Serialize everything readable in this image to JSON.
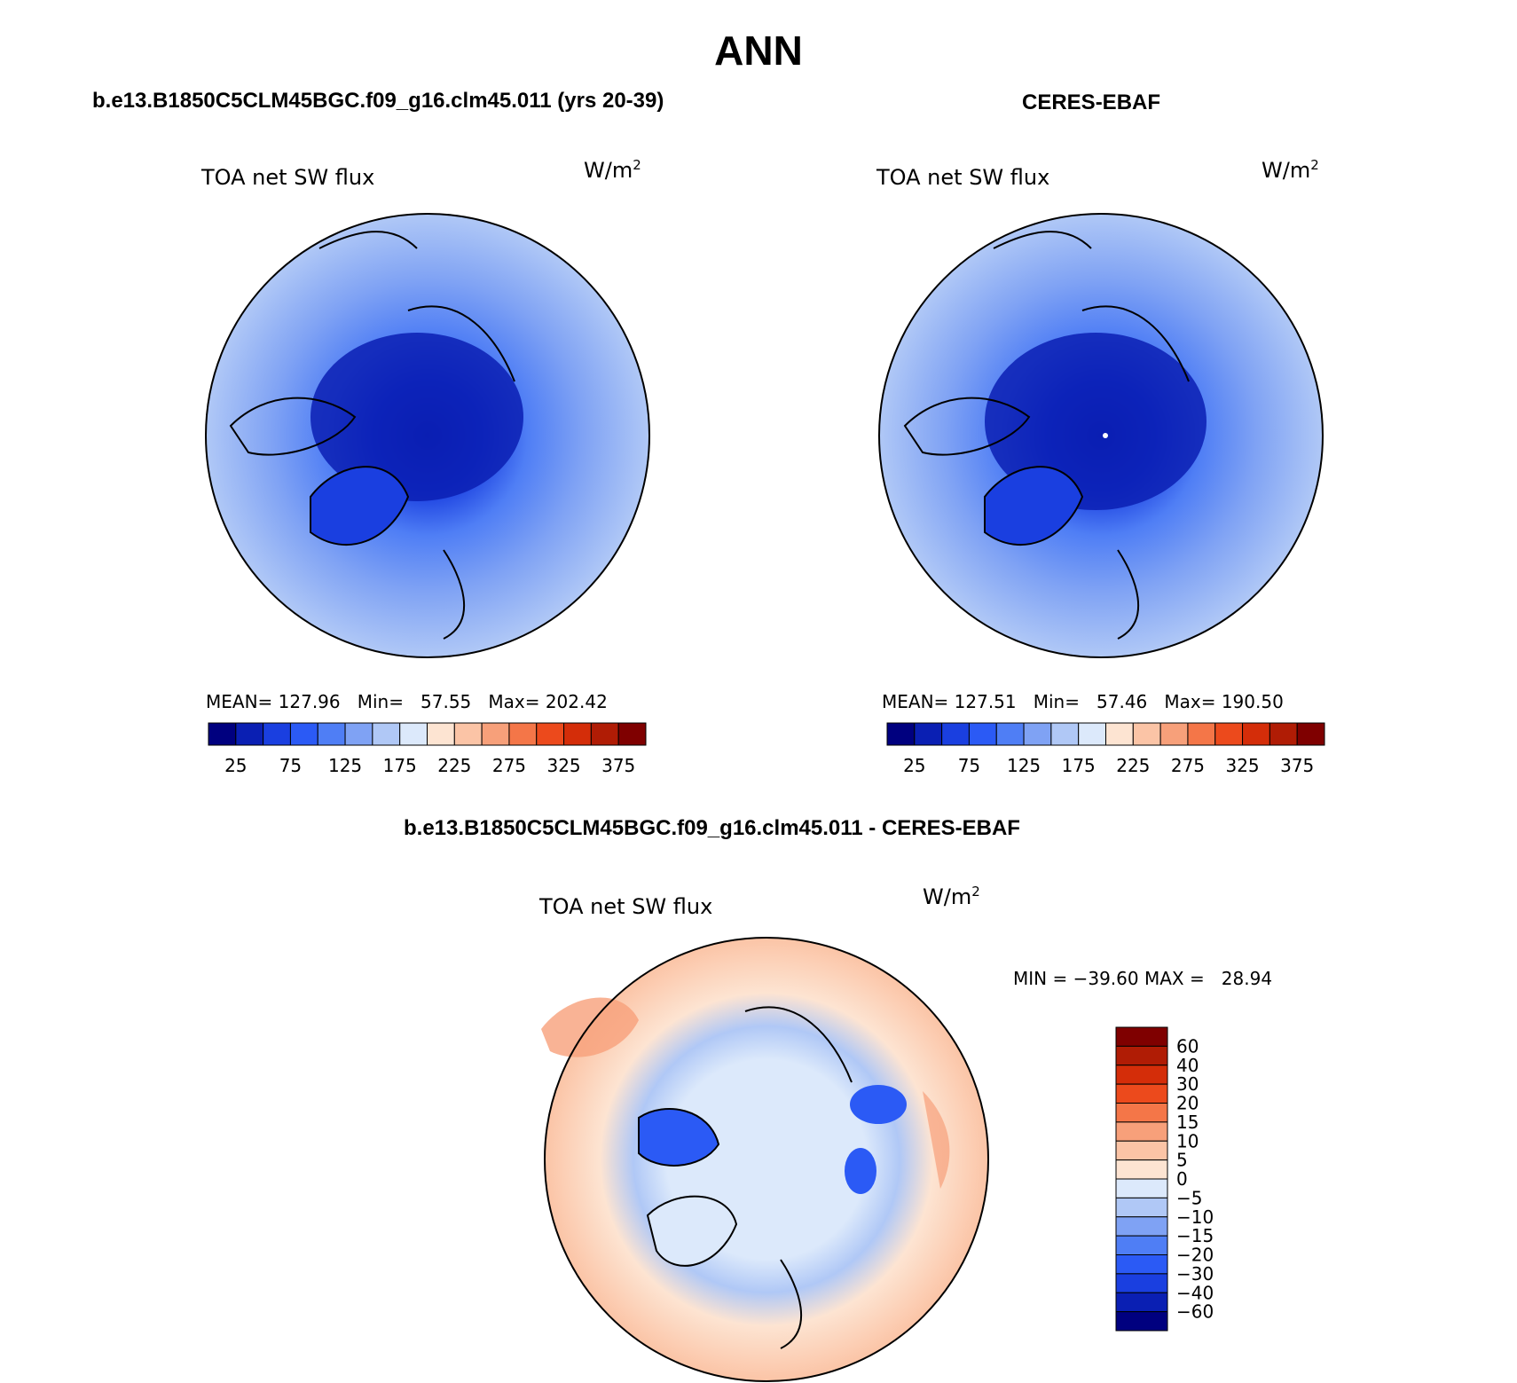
{
  "main_title": "ANN",
  "panels": {
    "model": {
      "title": "b.e13.B1850C5CLM45BGC.f09_g16.clm45.011 (yrs 20-39)",
      "variable": "TOA net SW flux",
      "units": "W/m",
      "units_exp": "2",
      "stats": "MEAN= 127.96   Min=   57.55   Max= 202.42"
    },
    "obs": {
      "title": "CERES-EBAF",
      "variable": "TOA net SW flux",
      "units": "W/m",
      "units_exp": "2",
      "stats": "MEAN= 127.51   Min=   57.46   Max= 190.50"
    },
    "diff": {
      "title": "b.e13.B1850C5CLM45BGC.f09_g16.clm45.011 - CERES-EBAF",
      "variable": "TOA net SW flux",
      "units": "W/m",
      "units_exp": "2",
      "stats": "MIN = −39.60 MAX =   28.94"
    }
  },
  "colorbar_abs": {
    "labels": [
      "25",
      "75",
      "125",
      "175",
      "225",
      "275",
      "325",
      "375"
    ],
    "colors": [
      "#00007f",
      "#0a1fb3",
      "#1a3fe0",
      "#2b5af5",
      "#4f7ef5",
      "#7fa2f4",
      "#b0c8f6",
      "#dce9fb",
      "#fde4d2",
      "#fbc4a6",
      "#f7a07a",
      "#f47648",
      "#ec4a1c",
      "#d42d09",
      "#b01c05",
      "#7f0000"
    ]
  },
  "colorbar_diff": {
    "labels": [
      "60",
      "40",
      "30",
      "20",
      "15",
      "10",
      "5",
      "0",
      "−5",
      "−10",
      "−15",
      "−20",
      "−30",
      "−40",
      "−60"
    ],
    "colors": [
      "#7f0000",
      "#b01c05",
      "#d42d09",
      "#ec4a1c",
      "#f47648",
      "#f7a07a",
      "#fbc4a6",
      "#fde4d2",
      "#dce9fb",
      "#b0c8f6",
      "#7fa2f4",
      "#4f7ef5",
      "#2b5af5",
      "#1a3fe0",
      "#0a1fb3",
      "#00007f"
    ]
  }
}
